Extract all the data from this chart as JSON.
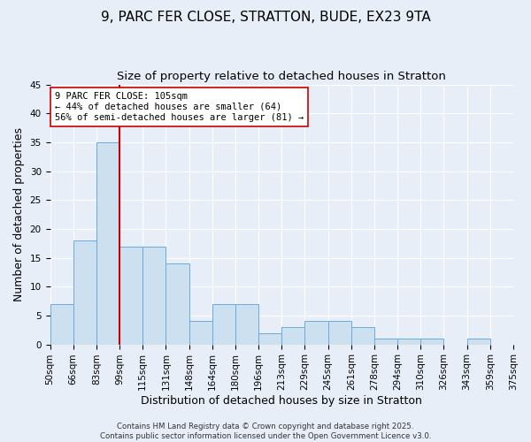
{
  "title": "9, PARC FER CLOSE, STRATTON, BUDE, EX23 9TA",
  "subtitle": "Size of property relative to detached houses in Stratton",
  "xlabel": "Distribution of detached houses by size in Stratton",
  "ylabel": "Number of detached properties",
  "bar_values": [
    7,
    18,
    35,
    17,
    17,
    14,
    4,
    7,
    7,
    2,
    3,
    4,
    4,
    3,
    1,
    1,
    1,
    0,
    1
  ],
  "bin_labels": [
    "50sqm",
    "66sqm",
    "83sqm",
    "99sqm",
    "115sqm",
    "131sqm",
    "148sqm",
    "164sqm",
    "180sqm",
    "196sqm",
    "213sqm",
    "229sqm",
    "245sqm",
    "261sqm",
    "278sqm",
    "294sqm",
    "310sqm",
    "326sqm",
    "343sqm",
    "359sqm",
    "375sqm"
  ],
  "bar_color": "#cce0f0",
  "bar_edge_color": "#6aabe0",
  "vline_color": "#cc0000",
  "ylim": [
    0,
    45
  ],
  "yticks": [
    0,
    5,
    10,
    15,
    20,
    25,
    30,
    35,
    40,
    45
  ],
  "annotation_title": "9 PARC FER CLOSE: 105sqm",
  "annotation_line1": "← 44% of detached houses are smaller (64)",
  "annotation_line2": "56% of semi-detached houses are larger (81) →",
  "annotation_box_color": "#ffffff",
  "annotation_box_edge": "#cc0000",
  "footer1": "Contains HM Land Registry data © Crown copyright and database right 2025.",
  "footer2": "Contains public sector information licensed under the Open Government Licence v3.0.",
  "background_color": "#e8eef8",
  "grid_color": "#ffffff",
  "title_fontsize": 11,
  "subtitle_fontsize": 9.5,
  "axis_label_fontsize": 9,
  "tick_fontsize": 7.5,
  "annotation_fontsize": 7.5
}
